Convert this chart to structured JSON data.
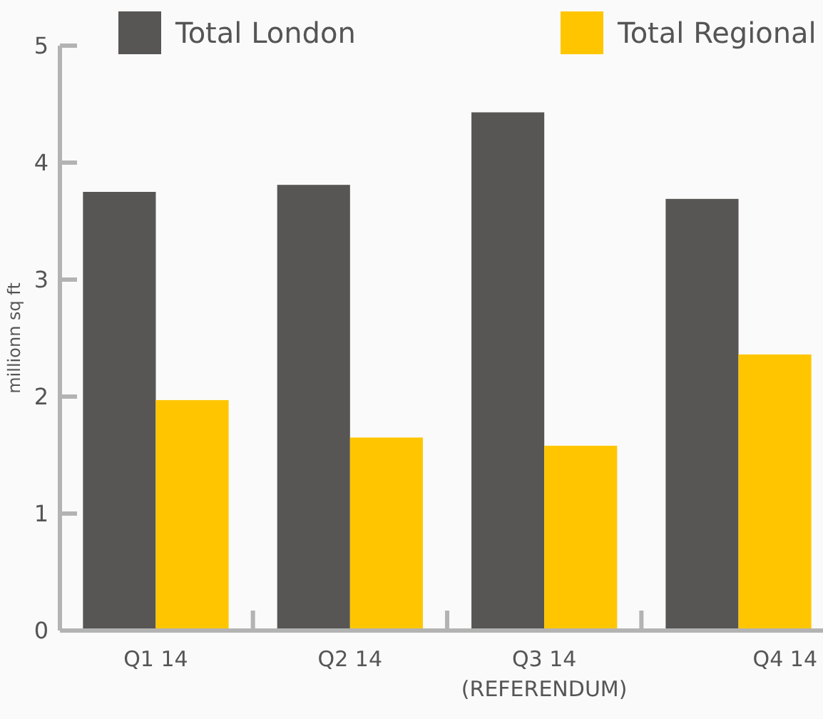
{
  "chart_data": {
    "type": "bar",
    "ylabel": "millionn sq ft",
    "categories": [
      "Q1 14",
      "Q2 14",
      "Q3 14\n(REFERENDUM)",
      "Q4 14"
    ],
    "series": [
      {
        "name": "Total London",
        "color": "#575654",
        "values": [
          3.75,
          3.81,
          4.43,
          3.69
        ]
      },
      {
        "name": "Total Regional",
        "color": "#ffc600",
        "values": [
          1.97,
          1.65,
          1.58,
          2.36
        ]
      }
    ],
    "ylim": [
      0,
      5
    ],
    "yticks": [
      0,
      1,
      2,
      3,
      4,
      5
    ],
    "grid": false,
    "legend": "top"
  }
}
